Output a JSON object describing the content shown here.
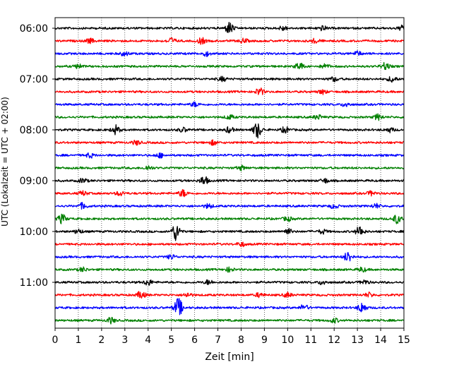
{
  "chart_data": {
    "type": "line",
    "xlabel": "Zeit  [min]",
    "ylabel": "UTC (Lokalzeit = UTC + 02:00)",
    "xlim": [
      0,
      15
    ],
    "xticks": [
      0,
      1,
      2,
      3,
      4,
      5,
      6,
      7,
      8,
      9,
      10,
      11,
      12,
      13,
      14,
      15
    ],
    "xtick_labels": [
      "0",
      "1",
      "2",
      "3",
      "4",
      "5",
      "6",
      "7",
      "8",
      "9",
      "10",
      "11",
      "12",
      "13",
      "14",
      "15"
    ],
    "trace_start": "06:00",
    "trace_interval_min": 15,
    "trace_count": 24,
    "ytick_labels": [
      "06:00",
      "07:00",
      "08:00",
      "09:00",
      "10:00",
      "11:00"
    ],
    "grid": "x-dotted",
    "colors": [
      "#000000",
      "#ff0000",
      "#0000ff",
      "#008000"
    ],
    "traces": [
      {
        "start": "06:00",
        "color": "#000000",
        "events": [
          [
            7.5,
            8
          ],
          [
            9.8,
            3
          ],
          [
            11.5,
            3
          ],
          [
            14.9,
            3
          ]
        ]
      },
      {
        "start": "06:15",
        "color": "#ff0000",
        "events": [
          [
            1.5,
            3
          ],
          [
            5.0,
            4
          ],
          [
            6.3,
            4
          ],
          [
            8.1,
            3
          ],
          [
            11.2,
            3
          ]
        ]
      },
      {
        "start": "06:30",
        "color": "#0000ff",
        "events": [
          [
            3.0,
            3
          ],
          [
            6.5,
            3
          ],
          [
            13.0,
            3
          ]
        ]
      },
      {
        "start": "06:45",
        "color": "#008000",
        "events": [
          [
            1.0,
            3
          ],
          [
            10.5,
            5
          ],
          [
            11.6,
            3
          ],
          [
            14.2,
            5
          ]
        ]
      },
      {
        "start": "07:00",
        "color": "#000000",
        "events": [
          [
            7.2,
            3
          ],
          [
            12.0,
            3
          ],
          [
            14.5,
            4
          ]
        ]
      },
      {
        "start": "07:15",
        "color": "#ff0000",
        "events": [
          [
            8.8,
            5
          ],
          [
            11.5,
            3
          ]
        ]
      },
      {
        "start": "07:30",
        "color": "#0000ff",
        "events": [
          [
            6.0,
            3
          ],
          [
            12.5,
            3
          ]
        ]
      },
      {
        "start": "07:45",
        "color": "#008000",
        "events": [
          [
            7.5,
            3
          ],
          [
            11.3,
            3
          ],
          [
            13.9,
            4
          ]
        ]
      },
      {
        "start": "08:00",
        "color": "#000000",
        "events": [
          [
            2.6,
            6
          ],
          [
            5.5,
            3
          ],
          [
            7.5,
            4
          ],
          [
            8.7,
            11
          ],
          [
            9.9,
            4
          ],
          [
            14.4,
            3
          ]
        ]
      },
      {
        "start": "08:15",
        "color": "#ff0000",
        "events": [
          [
            3.5,
            3
          ],
          [
            6.8,
            3
          ]
        ]
      },
      {
        "start": "08:30",
        "color": "#0000ff",
        "events": [
          [
            1.5,
            3
          ],
          [
            4.5,
            3
          ]
        ]
      },
      {
        "start": "08:45",
        "color": "#008000",
        "events": [
          [
            4.0,
            3
          ],
          [
            8.0,
            3
          ]
        ]
      },
      {
        "start": "09:00",
        "color": "#000000",
        "events": [
          [
            1.2,
            3
          ],
          [
            6.4,
            6
          ],
          [
            11.6,
            3
          ]
        ]
      },
      {
        "start": "09:15",
        "color": "#ff0000",
        "events": [
          [
            1.2,
            3
          ],
          [
            2.8,
            3
          ],
          [
            5.5,
            5
          ],
          [
            13.6,
            3
          ]
        ]
      },
      {
        "start": "09:30",
        "color": "#0000ff",
        "events": [
          [
            1.2,
            4
          ],
          [
            6.6,
            3
          ],
          [
            12.0,
            3
          ],
          [
            13.8,
            3
          ]
        ]
      },
      {
        "start": "09:45",
        "color": "#008000",
        "events": [
          [
            0.3,
            6
          ],
          [
            10.0,
            3
          ],
          [
            14.7,
            6
          ]
        ]
      },
      {
        "start": "10:00",
        "color": "#000000",
        "events": [
          [
            1.0,
            3
          ],
          [
            5.2,
            12
          ],
          [
            10.0,
            4
          ],
          [
            11.5,
            3
          ],
          [
            13.1,
            7
          ]
        ]
      },
      {
        "start": "10:15",
        "color": "#ff0000",
        "events": [
          [
            8.0,
            3
          ]
        ]
      },
      {
        "start": "10:30",
        "color": "#0000ff",
        "events": [
          [
            5.0,
            3
          ],
          [
            12.6,
            7
          ]
        ]
      },
      {
        "start": "10:45",
        "color": "#008000",
        "events": [
          [
            1.2,
            3
          ],
          [
            7.5,
            3
          ],
          [
            13.2,
            3
          ]
        ]
      },
      {
        "start": "11:00",
        "color": "#000000",
        "events": [
          [
            4.0,
            4
          ],
          [
            6.6,
            3
          ],
          [
            11.5,
            3
          ],
          [
            13.3,
            3
          ]
        ]
      },
      {
        "start": "11:15",
        "color": "#ff0000",
        "events": [
          [
            3.7,
            5
          ],
          [
            5.7,
            3
          ],
          [
            8.8,
            3
          ],
          [
            10.0,
            3
          ],
          [
            13.5,
            3
          ]
        ]
      },
      {
        "start": "11:30",
        "color": "#0000ff",
        "events": [
          [
            5.3,
            13
          ],
          [
            10.7,
            4
          ],
          [
            13.2,
            7
          ]
        ]
      },
      {
        "start": "11:45",
        "color": "#008000",
        "events": [
          [
            2.4,
            4
          ],
          [
            12.0,
            3
          ]
        ]
      }
    ]
  }
}
